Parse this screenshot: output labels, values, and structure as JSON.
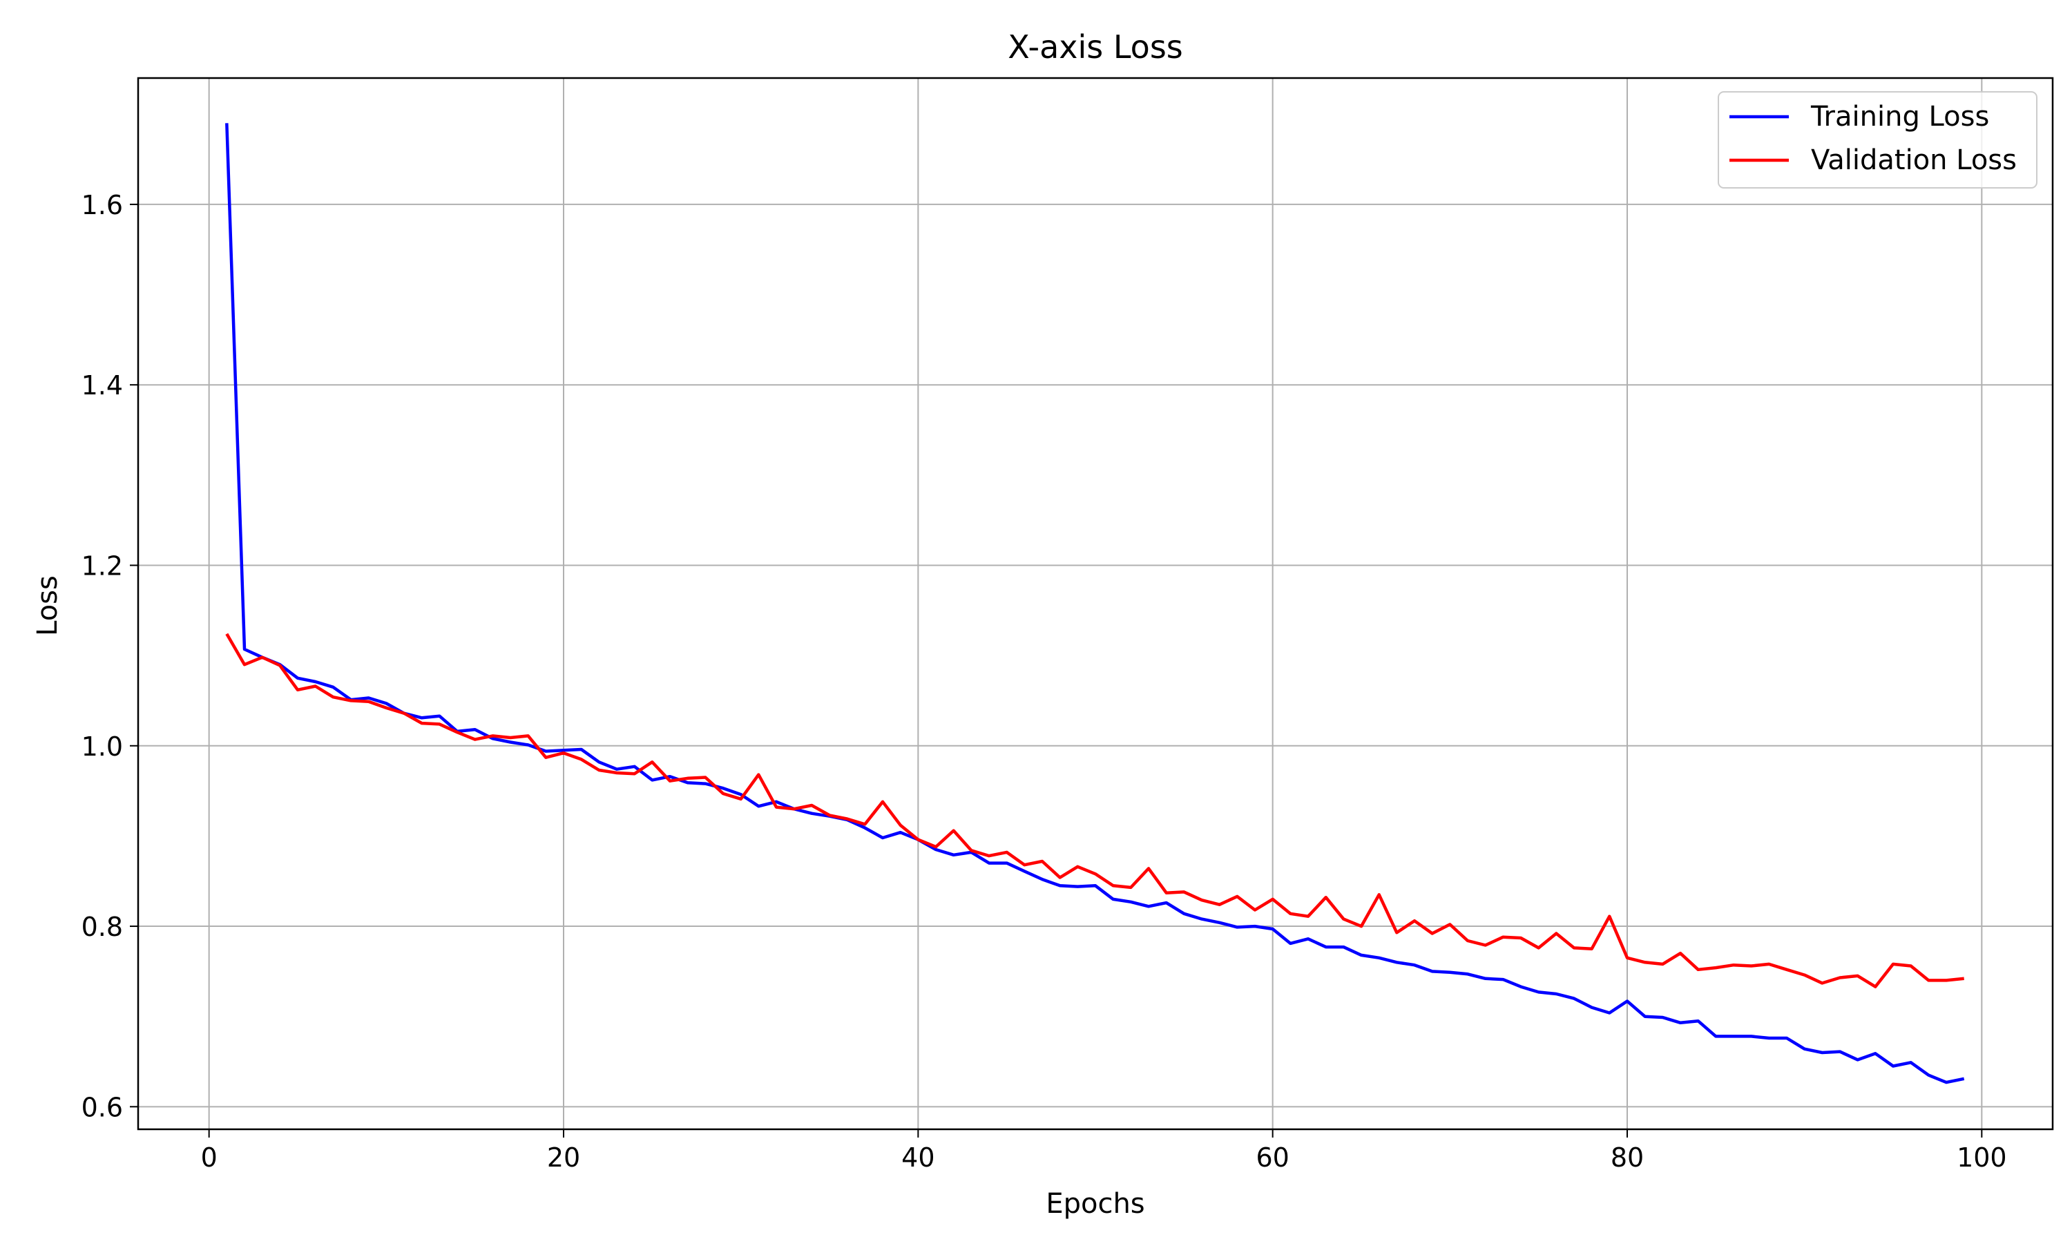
{
  "chart_data": {
    "type": "line",
    "title": "X-axis Loss",
    "xlabel": "Epochs",
    "ylabel": "Loss",
    "xlim": [
      -4,
      104
    ],
    "ylim": [
      0.575,
      1.74
    ],
    "xticks": [
      0,
      20,
      40,
      60,
      80,
      100
    ],
    "yticks": [
      0.6,
      0.8,
      1.0,
      1.2,
      1.4,
      1.6
    ],
    "xtick_labels": [
      "0",
      "20",
      "40",
      "60",
      "80",
      "100"
    ],
    "ytick_labels": [
      "0.6",
      "0.8",
      "1.0",
      "1.2",
      "1.4",
      "1.6"
    ],
    "grid": true,
    "legend_position": "top-right",
    "x": [
      1,
      2,
      3,
      4,
      5,
      6,
      7,
      8,
      9,
      10,
      11,
      12,
      13,
      14,
      15,
      16,
      17,
      18,
      19,
      20,
      21,
      22,
      23,
      24,
      25,
      26,
      27,
      28,
      29,
      30,
      31,
      32,
      33,
      34,
      35,
      36,
      37,
      38,
      39,
      40,
      41,
      42,
      43,
      44,
      45,
      46,
      47,
      48,
      49,
      50,
      51,
      52,
      53,
      54,
      55,
      56,
      57,
      58,
      59,
      60,
      61,
      62,
      63,
      64,
      65,
      66,
      67,
      68,
      69,
      70,
      71,
      72,
      73,
      74,
      75,
      76,
      77,
      78,
      79,
      80,
      81,
      82,
      83,
      84,
      85,
      86,
      87,
      88,
      89,
      90,
      91,
      92,
      93,
      94,
      95,
      96,
      97,
      98,
      99
    ],
    "series": [
      {
        "name": "Training Loss",
        "color": "#0000ff",
        "values": [
          1.69,
          1.107,
          1.098,
          1.09,
          1.075,
          1.071,
          1.065,
          1.051,
          1.053,
          1.047,
          1.036,
          1.031,
          1.033,
          1.016,
          1.018,
          1.008,
          1.004,
          1.001,
          0.994,
          0.995,
          0.996,
          0.982,
          0.974,
          0.977,
          0.962,
          0.966,
          0.959,
          0.958,
          0.953,
          0.946,
          0.933,
          0.938,
          0.93,
          0.925,
          0.922,
          0.918,
          0.909,
          0.898,
          0.904,
          0.896,
          0.885,
          0.879,
          0.882,
          0.87,
          0.87,
          0.861,
          0.852,
          0.845,
          0.844,
          0.845,
          0.83,
          0.827,
          0.822,
          0.826,
          0.814,
          0.808,
          0.804,
          0.799,
          0.8,
          0.797,
          0.781,
          0.786,
          0.777,
          0.777,
          0.768,
          0.765,
          0.76,
          0.757,
          0.75,
          0.749,
          0.747,
          0.742,
          0.741,
          0.733,
          0.727,
          0.725,
          0.72,
          0.71,
          0.704,
          0.717,
          0.7,
          0.699,
          0.693,
          0.695,
          0.678,
          0.678,
          0.678,
          0.676,
          0.676,
          0.664,
          0.66,
          0.661,
          0.652,
          0.659,
          0.645,
          0.649,
          0.635,
          0.627,
          0.631
        ]
      },
      {
        "name": "Validation Loss",
        "color": "#ff0000",
        "values": [
          1.124,
          1.09,
          1.098,
          1.089,
          1.062,
          1.066,
          1.054,
          1.05,
          1.049,
          1.042,
          1.036,
          1.025,
          1.024,
          1.015,
          1.007,
          1.011,
          1.009,
          1.011,
          0.987,
          0.992,
          0.985,
          0.973,
          0.97,
          0.969,
          0.982,
          0.961,
          0.964,
          0.965,
          0.947,
          0.941,
          0.968,
          0.932,
          0.93,
          0.934,
          0.923,
          0.919,
          0.913,
          0.938,
          0.912,
          0.896,
          0.888,
          0.906,
          0.884,
          0.878,
          0.882,
          0.868,
          0.872,
          0.854,
          0.866,
          0.858,
          0.845,
          0.843,
          0.864,
          0.837,
          0.838,
          0.829,
          0.824,
          0.833,
          0.818,
          0.83,
          0.814,
          0.811,
          0.832,
          0.808,
          0.8,
          0.835,
          0.793,
          0.806,
          0.792,
          0.802,
          0.784,
          0.779,
          0.788,
          0.787,
          0.776,
          0.792,
          0.776,
          0.775,
          0.811,
          0.765,
          0.76,
          0.758,
          0.77,
          0.752,
          0.754,
          0.757,
          0.756,
          0.758,
          0.752,
          0.746,
          0.737,
          0.743,
          0.745,
          0.733,
          0.758,
          0.756,
          0.74,
          0.74,
          0.742
        ]
      }
    ]
  }
}
